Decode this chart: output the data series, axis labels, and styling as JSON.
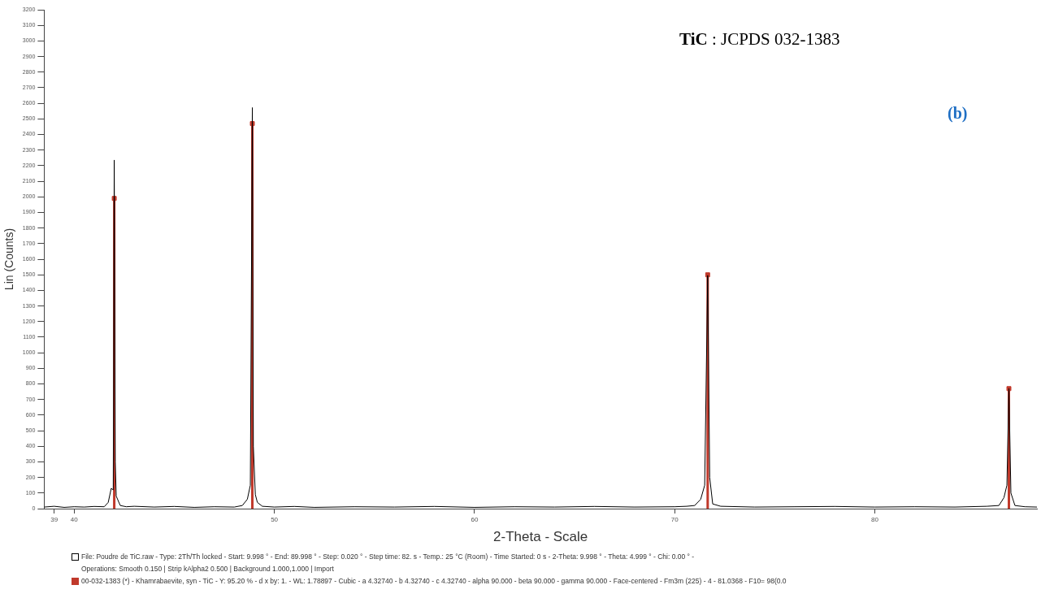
{
  "chart_data": {
    "type": "line",
    "title": "TiC : JCPDS 032-1383",
    "xlabel": "2-Theta - Scale",
    "ylabel": "Lin (Counts)",
    "annotations": [
      "(b)",
      "Operations: Smooth 0.150 | Strip kAlpha2 0.500 | Background 1.000,1.000 | Import"
    ],
    "xlim": [
      38.5,
      88.1
    ],
    "xticks": [
      39,
      40,
      50,
      60,
      70,
      80
    ],
    "ylim": [
      0,
      3200
    ],
    "yticks": [
      0,
      100,
      200,
      300,
      400,
      500,
      600,
      700,
      800,
      900,
      1000,
      1100,
      1200,
      1300,
      1400,
      1500,
      1600,
      1700,
      1800,
      1900,
      2000,
      2100,
      2200,
      2300,
      2400,
      2500,
      2600,
      2700,
      2800,
      2900,
      3000,
      3100,
      3200
    ],
    "grid": false,
    "legend": "bottom",
    "series": [
      {
        "name": "File: Poudre de TiC.raw - Type: 2Th/Th locked - Start: 9.998 ° - End: 89.998 ° - Step: 0.020 ° - Step time: 82. s - Temp.: 25 °C (Room) - Time Started: 0 s - 2-Theta: 9.998 ° - Theta: 4.999 ° - Chi: 0.00 ° -",
        "type": "line",
        "color": "#000000",
        "marker": "none",
        "x": [
          38.5,
          39,
          39.5,
          40,
          40.5,
          41,
          41.5,
          41.7,
          41.85,
          41.95,
          42.0,
          42.05,
          42.1,
          42.3,
          42.6,
          43,
          44,
          45,
          46,
          47,
          48,
          48.4,
          48.65,
          48.8,
          48.9,
          48.95,
          49.05,
          49.15,
          49.4,
          50,
          51,
          52,
          54,
          56,
          58,
          60,
          62,
          64,
          66,
          68,
          70,
          70.6,
          71.0,
          71.3,
          71.5,
          71.65,
          71.75,
          71.9,
          72.3,
          74,
          76,
          78,
          80,
          82,
          84,
          85.6,
          86.2,
          86.45,
          86.6,
          86.7,
          86.8,
          87.0,
          87.5,
          88.1
        ],
        "values": [
          10,
          15,
          8,
          12,
          10,
          14,
          12,
          40,
          130,
          120,
          2236,
          300,
          80,
          20,
          12,
          15,
          10,
          14,
          8,
          12,
          10,
          20,
          60,
          150,
          2572,
          400,
          90,
          40,
          15,
          10,
          14,
          8,
          12,
          10,
          14,
          8,
          12,
          10,
          14,
          10,
          12,
          15,
          20,
          60,
          150,
          1496,
          200,
          30,
          15,
          10,
          12,
          14,
          10,
          12,
          10,
          15,
          20,
          70,
          150,
          770,
          100,
          20,
          12,
          10
        ]
      },
      {
        "name": "00-032-1383 (*) - Khamrabaevite, syn - TiC - Y: 95.20 % - d x by: 1. - WL: 1.78897 - Cubic - a 4.32740 - b 4.32740 - c 4.32740 - alpha 90.000 - beta 90.000 - gamma 90.000 - Face-centered - Fm3m (225) - 4 - 81.0368 - F10= 98(0.0",
        "type": "lollipop",
        "color": "#c0392b",
        "marker": "square",
        "x": [
          42.0,
          48.9,
          71.65,
          86.7
        ],
        "values": [
          1990,
          2470,
          1500,
          770
        ]
      }
    ]
  }
}
